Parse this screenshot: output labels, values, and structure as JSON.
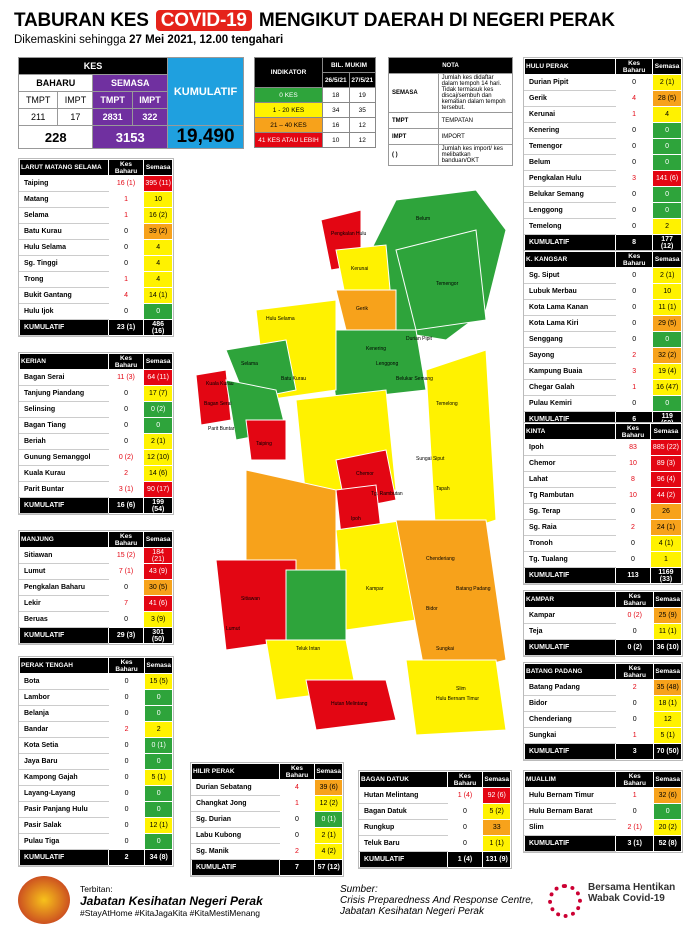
{
  "header": {
    "title_pre": "TABURAN KES",
    "title_covid": "COVID-19",
    "title_post": "MENGIKUT DAERAH DI NEGERI PERAK",
    "subtitle_pre": "Dikemaskini sehingga",
    "subtitle_bold": "27 Mei 2021, 12.00 tengahari"
  },
  "kes": {
    "kes": "KES",
    "baharu": "BAHARU",
    "semasa": "SEMASA",
    "tmpt": "TMPT",
    "impt": "IMPT",
    "b_tmpt": "211",
    "b_impt": "17",
    "s_tmpt": "2831",
    "s_impt": "322",
    "b_total": "228",
    "s_total": "3153",
    "kumulatif": "KUMULATIF",
    "kum_val": "19,490"
  },
  "indikator": {
    "h1": "INDIKATOR",
    "h2": "BIL. MUKIM",
    "d1": "26/5/21",
    "d2": "27/5/21",
    "rows": [
      {
        "l": "0 KES",
        "a": "18",
        "b": "19",
        "c": "grn"
      },
      {
        "l": "1 - 20 KES",
        "a": "34",
        "b": "35",
        "c": "yel"
      },
      {
        "l": "21 – 40 KES",
        "a": "16",
        "b": "12",
        "c": "org"
      },
      {
        "l": "41 KES ATAU LEBIH",
        "a": "10",
        "b": "12",
        "c": "red"
      }
    ]
  },
  "nota": {
    "h": "NOTA",
    "rows": [
      {
        "k": "SEMASA",
        "v": "Jumlah kes didaftar dalam tempoh 14 hari. Tidak termasuk kes discaj/sembuh dan kematian dalam tempoh tersebut."
      },
      {
        "k": "TMPT",
        "v": "TEMPATAN"
      },
      {
        "k": "IMPT",
        "v": "IMPORT"
      },
      {
        "k": "( )",
        "v": "Jumlah kes import/ kes melibatkan banduan/OKT"
      }
    ]
  },
  "col_kb": "Kes Baharu",
  "col_s": "Semasa",
  "kumulatif_label": "KUMULATIF",
  "districts": {
    "lms": {
      "name": "LARUT MATANG SELAMA",
      "rows": [
        [
          "Taiping",
          "16 (1)",
          "395 (11)",
          "red"
        ],
        [
          "Matang",
          "1",
          "10",
          "yel"
        ],
        [
          "Selama",
          "1",
          "16 (2)",
          "yel"
        ],
        [
          "Batu Kurau",
          "0",
          "39 (2)",
          "org"
        ],
        [
          "Hulu Selama",
          "0",
          "4",
          "yel"
        ],
        [
          "Sg. Tinggi",
          "0",
          "4",
          "yel"
        ],
        [
          "Trong",
          "1",
          "4",
          "yel"
        ],
        [
          "Bukit Gantang",
          "4",
          "14 (1)",
          "yel"
        ],
        [
          "Hulu Ijok",
          "0",
          "0",
          "grn"
        ]
      ],
      "kum": [
        "23 (1)",
        "486 (16)"
      ]
    },
    "kerian": {
      "name": "KERIAN",
      "rows": [
        [
          "Bagan Serai",
          "11 (3)",
          "64 (11)",
          "red"
        ],
        [
          "Tanjung Piandang",
          "0",
          "17 (7)",
          "yel"
        ],
        [
          "Selinsing",
          "0",
          "0 (2)",
          "grn"
        ],
        [
          "Bagan Tiang",
          "0",
          "0",
          "grn"
        ],
        [
          "Beriah",
          "0",
          "2 (1)",
          "yel"
        ],
        [
          "Gunung Semanggol",
          "0 (2)",
          "12 (10)",
          "yel"
        ],
        [
          "Kuala Kurau",
          "2",
          "14 (6)",
          "yel"
        ],
        [
          "Parit Buntar",
          "3 (1)",
          "90 (17)",
          "red"
        ]
      ],
      "kum": [
        "16 (6)",
        "199 (54)"
      ]
    },
    "manjung": {
      "name": "MANJUNG",
      "rows": [
        [
          "Sitiawan",
          "15 (2)",
          "184 (21)",
          "red"
        ],
        [
          "Lumut",
          "7 (1)",
          "43 (9)",
          "red"
        ],
        [
          "Pengkalan Baharu",
          "0",
          "30 (5)",
          "org"
        ],
        [
          "Lekir",
          "7",
          "41 (6)",
          "red"
        ],
        [
          "Beruas",
          "0",
          "3 (9)",
          "yel"
        ]
      ],
      "kum": [
        "29 (3)",
        "301 (50)"
      ]
    },
    "pt": {
      "name": "PERAK TENGAH",
      "rows": [
        [
          "Bota",
          "0",
          "15 (5)",
          "yel"
        ],
        [
          "Lambor",
          "0",
          "0",
          "grn"
        ],
        [
          "Belanja",
          "0",
          "0",
          "grn"
        ],
        [
          "Bandar",
          "2",
          "2",
          "yel"
        ],
        [
          "Kota Setia",
          "0",
          "0 (1)",
          "grn"
        ],
        [
          "Jaya Baru",
          "0",
          "0",
          "grn"
        ],
        [
          "Kampong Gajah",
          "0",
          "5 (1)",
          "yel"
        ],
        [
          "Layang-Layang",
          "0",
          "0",
          "grn"
        ],
        [
          "Pasir Panjang Hulu",
          "0",
          "0",
          "grn"
        ],
        [
          "Pasir Salak",
          "0",
          "12 (1)",
          "yel"
        ],
        [
          "Pulau Tiga",
          "0",
          "0",
          "grn"
        ]
      ],
      "kum": [
        "2",
        "34 (8)"
      ]
    },
    "hp": {
      "name": "HULU PERAK",
      "rows": [
        [
          "Durian Pipit",
          "0",
          "2 (1)",
          "yel"
        ],
        [
          "Gerik",
          "4",
          "28 (5)",
          "org"
        ],
        [
          "Kerunai",
          "1",
          "4",
          "yel"
        ],
        [
          "Kenering",
          "0",
          "0",
          "grn"
        ],
        [
          "Temengor",
          "0",
          "0",
          "grn"
        ],
        [
          "Belum",
          "0",
          "0",
          "grn"
        ],
        [
          "Pengkalan Hulu",
          "3",
          "141 (6)",
          "red"
        ],
        [
          "Belukar Semang",
          "0",
          "0",
          "grn"
        ],
        [
          "Lenggong",
          "0",
          "0",
          "grn"
        ],
        [
          "Temelong",
          "0",
          "2",
          "yel"
        ]
      ],
      "kum": [
        "8",
        "177 (12)"
      ]
    },
    "kk": {
      "name": "K. KANGSAR",
      "rows": [
        [
          "Sg. Siput",
          "0",
          "2 (1)",
          "yel"
        ],
        [
          "Lubuk Merbau",
          "0",
          "10",
          "yel"
        ],
        [
          "Kota Lama Kanan",
          "0",
          "11 (1)",
          "yel"
        ],
        [
          "Kota Lama Kiri",
          "0",
          "29 (5)",
          "org"
        ],
        [
          "Senggang",
          "0",
          "0",
          "grn"
        ],
        [
          "Sayong",
          "2",
          "32 (2)",
          "org"
        ],
        [
          "Kampung Buaia",
          "3",
          "19 (4)",
          "yel"
        ],
        [
          "Chegar Galah",
          "1",
          "16 (47)",
          "yel"
        ],
        [
          "Pulau Kemiri",
          "0",
          "0",
          "grn"
        ]
      ],
      "kum": [
        "6",
        "119 (60)"
      ]
    },
    "kinta": {
      "name": "KINTA",
      "rows": [
        [
          "Ipoh",
          "83",
          "885 (22)",
          "red"
        ],
        [
          "Chemor",
          "10",
          "89 (3)",
          "red"
        ],
        [
          "Lahat",
          "8",
          "96 (4)",
          "red"
        ],
        [
          "Tg Rambutan",
          "10",
          "44 (2)",
          "red"
        ],
        [
          "Sg. Terap",
          "0",
          "26",
          "org"
        ],
        [
          "Sg. Raia",
          "2",
          "24 (1)",
          "org"
        ],
        [
          "Tronoh",
          "0",
          "4 (1)",
          "yel"
        ],
        [
          "Tg. Tualang",
          "0",
          "1",
          "yel"
        ]
      ],
      "kum": [
        "113",
        "1169 (33)"
      ]
    },
    "kampar": {
      "name": "KAMPAR",
      "rows": [
        [
          "Kampar",
          "0 (2)",
          "25 (9)",
          "org"
        ],
        [
          "Teja",
          "0",
          "11 (1)",
          "yel"
        ]
      ],
      "kum": [
        "0 (2)",
        "36 (10)"
      ]
    },
    "bp": {
      "name": "BATANG PADANG",
      "rows": [
        [
          "Batang Padang",
          "2",
          "35 (48)",
          "org"
        ],
        [
          "Bidor",
          "0",
          "18 (1)",
          "yel"
        ],
        [
          "Chenderiang",
          "0",
          "12",
          "yel"
        ],
        [
          "Sungkai",
          "1",
          "5 (1)",
          "yel"
        ]
      ],
      "kum": [
        "3",
        "70 (50)"
      ]
    },
    "hip": {
      "name": "HILIR PERAK",
      "rows": [
        [
          "Durian Sebatang",
          "4",
          "39 (6)",
          "org"
        ],
        [
          "Changkat Jong",
          "1",
          "12 (2)",
          "yel"
        ],
        [
          "Sg. Durian",
          "0",
          "0 (1)",
          "grn"
        ],
        [
          "Labu Kubong",
          "0",
          "2 (1)",
          "yel"
        ],
        [
          "Sg. Manik",
          "2",
          "4 (2)",
          "yel"
        ]
      ],
      "kum": [
        "7",
        "57 (12)"
      ]
    },
    "bd": {
      "name": "BAGAN DATUK",
      "rows": [
        [
          "Hutan Melintang",
          "1 (4)",
          "92 (6)",
          "red"
        ],
        [
          "Bagan Datuk",
          "0",
          "5 (2)",
          "yel"
        ],
        [
          "Rungkup",
          "0",
          "33",
          "org"
        ],
        [
          "Teluk Baru",
          "0",
          "1 (1)",
          "yel"
        ]
      ],
      "kum": [
        "1 (4)",
        "131 (9)"
      ]
    },
    "mu": {
      "name": "MUALLIM",
      "rows": [
        [
          "Hulu Bernam Timur",
          "1",
          "32 (6)",
          "org"
        ],
        [
          "Hulu Bernam Barat",
          "0",
          "0",
          "grn"
        ],
        [
          "Slim",
          "2 (1)",
          "20 (2)",
          "yel"
        ]
      ],
      "kum": [
        "3 (1)",
        "52 (8)"
      ]
    }
  },
  "map_labels": [
    "Pengkalan Hulu",
    "Kerunai",
    "Belum",
    "Temengor",
    "Gerik",
    "Kenering",
    "Durian Pipit",
    "Lenggong",
    "Belukar Semang",
    "Temelong",
    "Hulu Selama",
    "Selama",
    "Batu Kurau",
    "Kuala Kurau",
    "Bagan Serai",
    "Parit Buntar",
    "Taiping",
    "Ipoh",
    "Chemor",
    "Tg. Rambutan",
    "Sungai Siput",
    "Kampar",
    "Tapah",
    "Bidor",
    "Slim",
    "Sitiawan",
    "Lumut",
    "Teluk Intan",
    "Hutan Melintang",
    "Sungkai",
    "Chenderiang",
    "Batang Padang",
    "Hulu Bernam Timur"
  ],
  "footer": {
    "terbitan": "Terbitan:",
    "org": "Jabatan Kesihatan Negeri Perak",
    "tags": "#StayAtHome #KitaJagaKita #KitaMestiMenang",
    "sumber": "Sumber:",
    "src1": "Crisis Preparedness And Response Centre,",
    "src2": "Jabatan Kesihatan Negeri Perak",
    "logo": "Bersama Hentikan Wabak Covid-19"
  }
}
